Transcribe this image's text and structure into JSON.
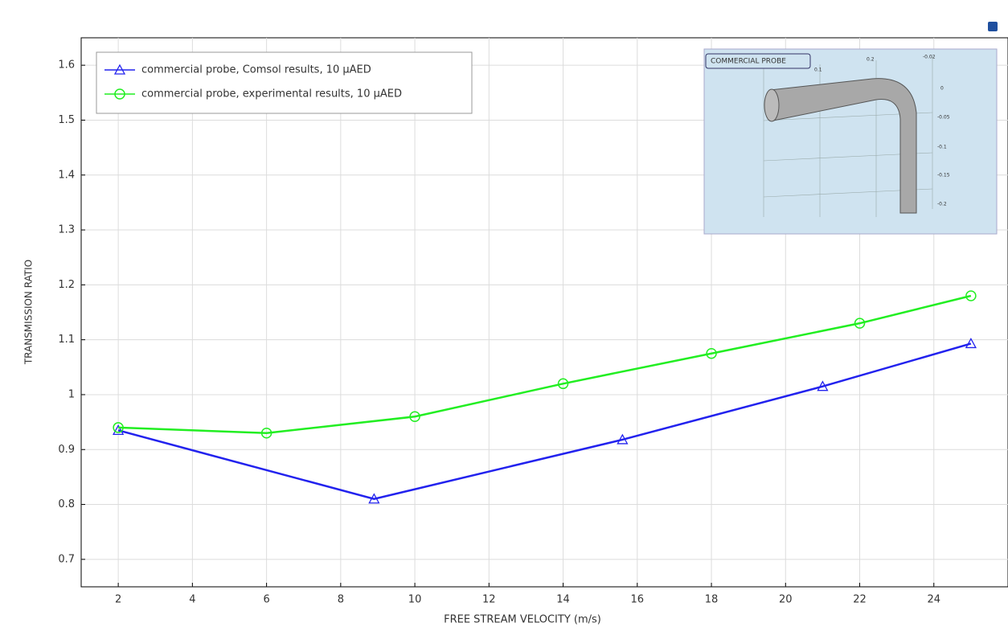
{
  "chart_data": {
    "type": "line",
    "xlabel": "FREE STREAM VELOCITY (m/s)",
    "ylabel": "TRANSMISSION RATIO",
    "xlim": [
      1,
      26
    ],
    "xticks": [
      2,
      4,
      6,
      8,
      10,
      12,
      14,
      16,
      18,
      20,
      22,
      24
    ],
    "ylim": [
      0.65,
      1.65
    ],
    "yticks": [
      0.7,
      0.8,
      0.9,
      1,
      1.1,
      1.2,
      1.3,
      1.4,
      1.5,
      1.6
    ],
    "grid": true,
    "legend": "upper left",
    "series": [
      {
        "name": "commercial probe, Comsol results, 10 µAED",
        "color": "#2222ee",
        "marker": "triangle",
        "x": [
          2,
          8.9,
          15.6,
          21,
          25
        ],
        "values": [
          0.935,
          0.81,
          0.918,
          1.015,
          1.093
        ]
      },
      {
        "name": "commercial probe, experimental results, 10 µAED",
        "color": "#22ee22",
        "marker": "circle",
        "x": [
          2,
          6,
          10,
          14,
          18,
          22,
          25
        ],
        "values": [
          0.94,
          0.93,
          0.96,
          1.02,
          1.075,
          1.13,
          1.18
        ]
      }
    ],
    "inset": {
      "title": "COMMERCIAL PROBE",
      "labels": [
        "0.1",
        "0.2",
        "-0.02",
        "0",
        "-0.05",
        "-0.1",
        "-0.15",
        "-0.2"
      ]
    }
  }
}
